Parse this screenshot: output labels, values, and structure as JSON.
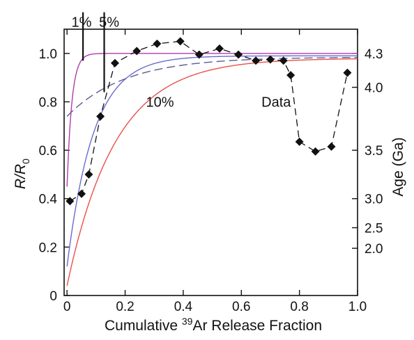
{
  "chart_data": {
    "type": "line",
    "x_axis": {
      "label_prefix": "Cumulative ",
      "label_sup": "39",
      "label_suffix": "Ar Release Fraction",
      "ticks": [
        0,
        0.2,
        0.4,
        0.6,
        0.8,
        1.0
      ],
      "tick_labels": [
        "0",
        "0.2",
        "0.4",
        "0.6",
        "0.8",
        "1.0"
      ],
      "range": [
        -0.01,
        1.0
      ]
    },
    "y_axis_left": {
      "label_main": "R/R",
      "label_sub": "0",
      "ticks": [
        0,
        0.2,
        0.4,
        0.6,
        0.8,
        1.0
      ],
      "tick_labels": [
        "0",
        "0.2",
        "0.4",
        "0.6",
        "0.8",
        "1.0"
      ],
      "range": [
        0,
        1.1
      ]
    },
    "y_axis_right": {
      "label": "Age (Ga)",
      "ticks": [
        {
          "label": "4.3",
          "ratio": 1.0
        },
        {
          "label": "4.0",
          "ratio": 0.86
        },
        {
          "label": "3.5",
          "ratio": 0.6
        },
        {
          "label": "3.0",
          "ratio": 0.4
        },
        {
          "label": "2.5",
          "ratio": 0.28
        },
        {
          "label": "2.0",
          "ratio": 0.195
        }
      ]
    },
    "annotations": [
      {
        "text": "1%",
        "x": 0.05,
        "y": 1.13
      },
      {
        "text": "5%",
        "x": 0.145,
        "y": 1.13
      },
      {
        "text": "10%",
        "x": 0.32,
        "y": 0.8
      },
      {
        "text": "Data",
        "x": 0.72,
        "y": 0.8
      }
    ],
    "markers_vertical": [
      {
        "x": 0.055,
        "y_from": 0.97,
        "y_to": 1.17
      },
      {
        "x": 0.128,
        "y_from": 0.84,
        "y_to": 1.17
      }
    ],
    "curves": [
      {
        "color": "#b03ab0",
        "style": "solid",
        "y0": 0.45,
        "yinf": 1.0,
        "k": 60
      },
      {
        "color": "#6a6ad0",
        "style": "solid",
        "y0": 0.12,
        "yinf": 0.99,
        "k": 11
      },
      {
        "color": "#e8504a",
        "style": "solid",
        "y0": 0.04,
        "yinf": 0.98,
        "k": 6
      },
      {
        "color": "#5a5a90",
        "style": "dashed",
        "y0": 0.74,
        "yinf": 0.985,
        "k": 5
      }
    ],
    "data_series": {
      "name": "Data",
      "color": "#111111",
      "x": [
        0.01,
        0.05,
        0.075,
        0.115,
        0.165,
        0.24,
        0.31,
        0.39,
        0.455,
        0.525,
        0.59,
        0.65,
        0.7,
        0.745,
        0.77,
        0.8,
        0.855,
        0.91,
        0.965
      ],
      "y": [
        0.39,
        0.42,
        0.5,
        0.74,
        0.96,
        1.01,
        1.04,
        1.05,
        0.995,
        1.02,
        0.995,
        0.97,
        0.975,
        0.97,
        0.91,
        0.635,
        0.595,
        0.615,
        0.92
      ]
    }
  }
}
